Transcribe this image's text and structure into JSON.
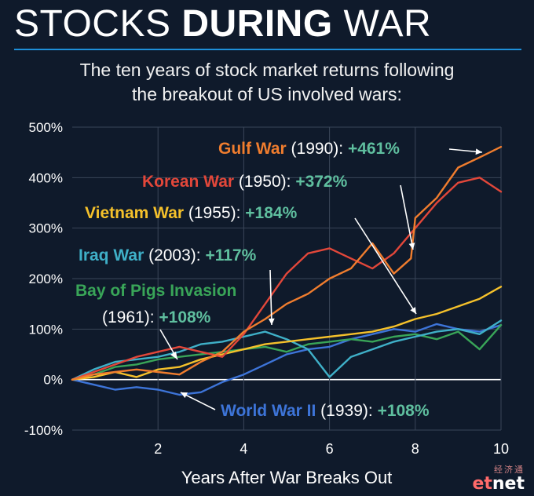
{
  "header": {
    "title_light": "STOCKS ",
    "title_bold": "DURING",
    "title_end": " WAR",
    "subtitle_line1": "The ten years of stock market returns following",
    "subtitle_line2": "the breakout of US involved wars:"
  },
  "colors": {
    "background": "#0f1a2b",
    "grid": "#3a4659",
    "accent_rule": "#1e8fd8",
    "value_green": "#5fbf9f"
  },
  "chart_data": {
    "type": "line",
    "title": "STOCKS DURING WAR",
    "xlabel": "Years After War Breaks Out",
    "ylabel": "",
    "xlim": [
      0,
      10
    ],
    "ylim": [
      -100,
      500
    ],
    "x_ticks": [
      "2",
      "4",
      "6",
      "8",
      "10"
    ],
    "x_tick_values": [
      2,
      4,
      6,
      8,
      10
    ],
    "y_ticks": [
      "500%",
      "400%",
      "300%",
      "200%",
      "100%",
      "0%",
      "-100%"
    ],
    "y_tick_values": [
      500,
      400,
      300,
      200,
      100,
      0,
      -100
    ],
    "grid": true,
    "series": [
      {
        "name": "Gulf War",
        "year": "(1990):",
        "change": "+461%",
        "color": "#f07d2e",
        "x": [
          0,
          0.5,
          1,
          1.5,
          2,
          2.5,
          3,
          3.5,
          4,
          4.5,
          5,
          5.5,
          6,
          6.5,
          7,
          7.5,
          7.9,
          8,
          8.5,
          9,
          9.5,
          10
        ],
        "y": [
          0,
          10,
          15,
          20,
          15,
          10,
          35,
          55,
          95,
          120,
          150,
          170,
          200,
          220,
          270,
          210,
          240,
          320,
          360,
          420,
          440,
          461
        ]
      },
      {
        "name": "Korean War",
        "year": "(1950):",
        "change": "+372%",
        "color": "#e2473a",
        "x": [
          0,
          0.5,
          1,
          1.5,
          2,
          2.5,
          3,
          3.5,
          4,
          4.5,
          5,
          5.5,
          6,
          6.5,
          7,
          7.5,
          8,
          8.5,
          9,
          9.5,
          10
        ],
        "y": [
          0,
          15,
          30,
          45,
          55,
          65,
          55,
          45,
          90,
          150,
          210,
          250,
          260,
          240,
          220,
          250,
          300,
          350,
          390,
          400,
          372
        ]
      },
      {
        "name": "Vietnam War",
        "year": "(1955):",
        "change": "+184%",
        "color": "#f5c12b",
        "x": [
          0,
          0.5,
          1,
          1.5,
          2,
          2.5,
          3,
          3.5,
          4,
          4.5,
          5,
          5.5,
          6,
          6.5,
          7,
          7.5,
          8,
          8.5,
          9,
          9.5,
          10
        ],
        "y": [
          0,
          5,
          15,
          5,
          20,
          25,
          40,
          50,
          60,
          70,
          75,
          80,
          85,
          90,
          95,
          105,
          120,
          130,
          145,
          160,
          184
        ]
      },
      {
        "name": "Iraq War",
        "year": "(2003):",
        "change": "+117%",
        "color": "#3fb0c8",
        "x": [
          0,
          0.5,
          1,
          1.5,
          2,
          2.5,
          3,
          3.5,
          4,
          4.5,
          5,
          5.5,
          6,
          6.5,
          7,
          7.5,
          8,
          8.5,
          9,
          9.5,
          10
        ],
        "y": [
          0,
          20,
          35,
          40,
          45,
          55,
          70,
          75,
          85,
          95,
          80,
          60,
          5,
          45,
          60,
          75,
          85,
          95,
          100,
          90,
          117
        ]
      },
      {
        "name": "Bay of Pigs Invasion",
        "year": "(1961):",
        "change": "+108%",
        "color": "#39a558",
        "x": [
          0,
          0.5,
          1,
          1.5,
          2,
          2.5,
          3,
          3.5,
          4,
          4.5,
          5,
          5.5,
          6,
          6.5,
          7,
          7.5,
          8,
          8.5,
          9,
          9.5,
          10
        ],
        "y": [
          0,
          10,
          25,
          30,
          40,
          45,
          50,
          55,
          60,
          65,
          55,
          70,
          75,
          80,
          75,
          85,
          90,
          80,
          95,
          60,
          108
        ]
      },
      {
        "name": "World War II",
        "year": "(1939):",
        "change": "+108%",
        "color": "#3d74d8",
        "x": [
          0,
          0.5,
          1,
          1.5,
          2,
          2.5,
          3,
          3.5,
          4,
          4.5,
          5,
          5.5,
          6,
          6.5,
          7,
          7.5,
          8,
          8.5,
          9,
          9.5,
          10
        ],
        "y": [
          0,
          -10,
          -20,
          -15,
          -20,
          -30,
          -25,
          -5,
          10,
          30,
          50,
          60,
          65,
          80,
          90,
          100,
          95,
          110,
          100,
          95,
          108
        ]
      }
    ]
  },
  "watermark": {
    "cn": "经济通",
    "en_et": "et",
    "en_net": "net"
  }
}
